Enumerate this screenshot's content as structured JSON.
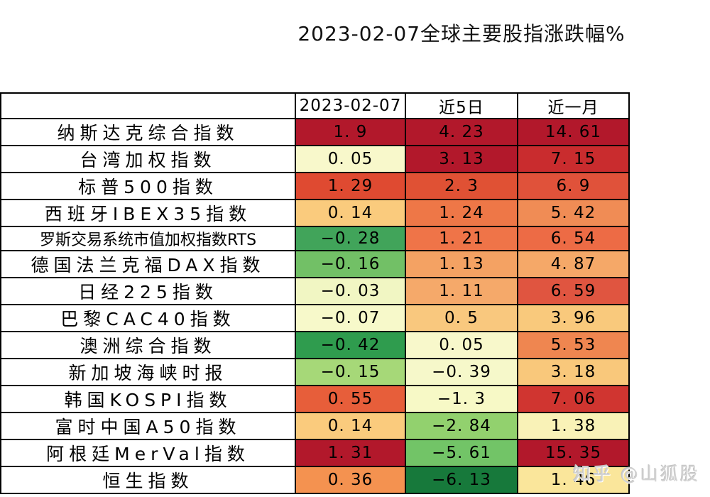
{
  "title": "2023-02-07全球主要股指涨跌幅%",
  "watermark": "知乎 @山狐股",
  "chart_data": {
    "type": "heatmap",
    "title": "2023-02-07全球主要股指涨跌幅%",
    "unit": "%",
    "columns": [
      "2023-02-07",
      "近5日",
      "近一月"
    ],
    "rows": [
      {
        "label": "纳斯达克综合指数",
        "values": [
          1.9,
          4.23,
          14.61
        ],
        "colors": [
          "#B2182B",
          "#B2182B",
          "#B2182B"
        ]
      },
      {
        "label": "台湾加权指数",
        "values": [
          0.05,
          3.13,
          7.15
        ],
        "colors": [
          "#F8F8CB",
          "#B2182B",
          "#C92C2E"
        ]
      },
      {
        "label": "标普500指数",
        "values": [
          1.29,
          2.3,
          6.9
        ],
        "colors": [
          "#DF4A31",
          "#E05134",
          "#E0523A"
        ]
      },
      {
        "label": "西班牙IBEX35指数",
        "values": [
          0.14,
          1.24,
          5.42
        ],
        "colors": [
          "#FACB7D",
          "#EE7747",
          "#F08C55"
        ]
      },
      {
        "label": "罗斯交易系统市值加权指数RTS",
        "values": [
          -0.28,
          1.21,
          6.54
        ],
        "colors": [
          "#41A45A",
          "#EF7448",
          "#ED6B45"
        ]
      },
      {
        "label": "德国法兰克福DAX指数",
        "values": [
          -0.16,
          1.13,
          4.87
        ],
        "colors": [
          "#72C066",
          "#F4A263",
          "#F5A868"
        ]
      },
      {
        "label": "日经225指数",
        "values": [
          -0.03,
          1.11,
          6.59
        ],
        "colors": [
          "#F1F6C3",
          "#F5A96A",
          "#E05540"
        ]
      },
      {
        "label": "巴黎CAC40指数",
        "values": [
          -0.07,
          0.5,
          3.96
        ],
        "colors": [
          "#F7F9CA",
          "#F9C87E",
          "#F9C97C"
        ]
      },
      {
        "label": "澳洲综合指数",
        "values": [
          -0.42,
          0.05,
          5.53
        ],
        "colors": [
          "#2F9C4E",
          "#F8F8CB",
          "#EF8650"
        ]
      },
      {
        "label": "新加坡海峡时报",
        "values": [
          -0.15,
          -0.39,
          3.18
        ],
        "colors": [
          "#A6D878",
          "#F6F8CA",
          "#F9C87B"
        ]
      },
      {
        "label": "韩国KOSPI指数",
        "values": [
          0.55,
          -1.3,
          7.06
        ],
        "colors": [
          "#E75E3A",
          "#F7F9C6",
          "#D03530"
        ]
      },
      {
        "label": "富时中国A50指数",
        "values": [
          0.14,
          -2.84,
          1.38
        ],
        "colors": [
          "#FACB7D",
          "#92D16E",
          "#F9F2B7"
        ]
      },
      {
        "label": "阿根廷MerVal指数",
        "values": [
          1.31,
          -5.61,
          15.35
        ],
        "colors": [
          "#B2182B",
          "#72C467",
          "#B2182B"
        ]
      },
      {
        "label": "恒生指数",
        "values": [
          0.36,
          -6.13,
          1.46
        ],
        "colors": [
          "#F49250",
          "#17793B",
          "#FAE69B"
        ]
      }
    ]
  }
}
